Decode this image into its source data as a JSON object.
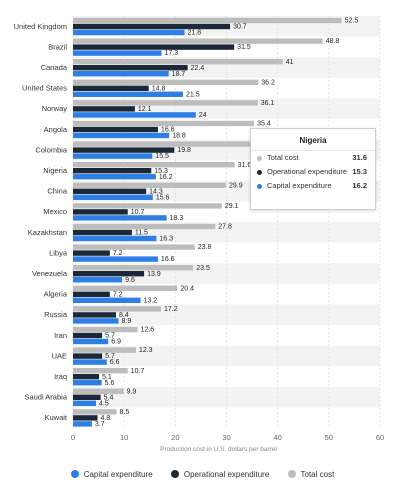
{
  "chart_data": {
    "type": "bar",
    "orientation": "horizontal",
    "categories": [
      "United Kingdom",
      "Brazil",
      "Canada",
      "United States",
      "Norway",
      "Angola",
      "Colombia",
      "Nigeria",
      "China",
      "Mexico",
      "Kazakhstan",
      "Libya",
      "Venezuela",
      "Algeria",
      "Russia",
      "Iran",
      "UAE",
      "Iraq",
      "Saudi Arabia",
      "Kuwait"
    ],
    "series": [
      {
        "name": "Total cost",
        "color": "#bdbdbd",
        "values": [
          52.5,
          48.8,
          41,
          36.2,
          36.1,
          35.4,
          35.2,
          31.6,
          29.9,
          29.1,
          27.8,
          23.8,
          23.5,
          20.4,
          17.2,
          12.6,
          12.3,
          10.7,
          9.9,
          8.5
        ]
      },
      {
        "name": "Operational expenditure",
        "color": "#1a2838",
        "values": [
          30.7,
          31.5,
          22.4,
          14.8,
          12.1,
          16.6,
          19.8,
          15.3,
          14.3,
          10.7,
          11.5,
          7.2,
          13.9,
          7.2,
          8.4,
          5.7,
          5.7,
          5.1,
          5.4,
          4.8
        ]
      },
      {
        "name": "Capital expenditure",
        "color": "#2e7fe5",
        "values": [
          21.8,
          17.3,
          18.7,
          21.5,
          24,
          18.8,
          15.5,
          16.2,
          15.6,
          18.3,
          16.3,
          16.6,
          9.6,
          13.2,
          8.9,
          6.9,
          6.6,
          5.6,
          4.5,
          3.7
        ]
      }
    ],
    "value_labels_shown": [
      [
        "52.5",
        "48.8",
        "41",
        "36.2",
        "36.1",
        "35.4",
        "",
        "31.6",
        "29.9",
        "29.1",
        "27.8",
        "23.8",
        "23.5",
        "20.4",
        "17.2",
        "12.6",
        "12.3",
        "10.7",
        "9.9",
        "8.5"
      ],
      [
        "30.7",
        "31.5",
        "22.4",
        "14.8",
        "12.1",
        "16.6",
        "19.8",
        "15.3",
        "14.3",
        "10.7",
        "11.5",
        "7.2",
        "13.9",
        "7.2",
        "8.4",
        "5.7",
        "5.7",
        "5.1",
        "5.4",
        "4.8"
      ],
      [
        "21.8",
        "17.3",
        "18.7",
        "21.5",
        "24",
        "18.8",
        "15.5",
        "16.2",
        "15.6",
        "18.3",
        "16.3",
        "16.6",
        "9.6",
        "13.2",
        "8.9",
        "6.9",
        "6.6",
        "5.6",
        "4.5",
        "3.7"
      ]
    ],
    "xlim": [
      0,
      60
    ],
    "xticks": [
      "0",
      "10",
      "20",
      "30",
      "40",
      "50",
      "60"
    ],
    "xlabel": "Production cost in U.S. dollars per barrel",
    "ylabel": "",
    "grid": true,
    "legend_position": "bottom",
    "legend_order": [
      "Capital expenditure",
      "Operational expenditure",
      "Total cost"
    ]
  },
  "tooltip": {
    "title": "Nigeria",
    "rows": [
      {
        "label": "Total cost",
        "value": "31.6",
        "color": "#bdbdbd"
      },
      {
        "label": "Operational expenditure",
        "value": "15.3",
        "color": "#1a2838"
      },
      {
        "label": "Capital expenditure",
        "value": "16.2",
        "color": "#2e7fe5"
      }
    ]
  },
  "legend": [
    {
      "label": "Capital expenditure",
      "color": "#2e7fe5"
    },
    {
      "label": "Operational expenditure",
      "color": "#1a2838"
    },
    {
      "label": "Total cost",
      "color": "#bdbdbd"
    }
  ]
}
